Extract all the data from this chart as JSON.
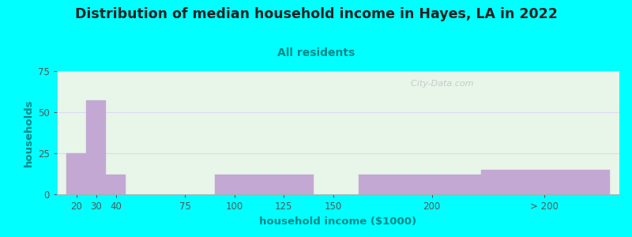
{
  "title": "Distribution of median household income in Hayes, LA in 2022",
  "subtitle": "All residents",
  "xlabel": "household income ($1000)",
  "ylabel": "households",
  "background_color": "#00FFFF",
  "plot_bg_left": "#e8f5e9",
  "plot_bg_right": "#f8f5ff",
  "bar_color": "#c4a8d4",
  "bar_edgecolor": "#c4a8d4",
  "title_fontsize": 12.5,
  "subtitle_fontsize": 10,
  "subtitle_color": "#008888",
  "tick_color": "#555555",
  "ylabel_color": "#008888",
  "xlabel_color": "#008888",
  "ylim": [
    0,
    75
  ],
  "yticks": [
    0,
    25,
    50,
    75
  ],
  "bar_lefts": [
    15,
    25,
    35,
    90,
    115,
    163,
    225
  ],
  "bar_rights": [
    25,
    35,
    45,
    115,
    140,
    225,
    290
  ],
  "bar_heights": [
    25,
    57,
    12,
    12,
    12,
    12,
    15
  ],
  "xtick_labels": [
    "20",
    "30",
    "40",
    "75",
    "100",
    "125",
    "150",
    "200",
    "> 200"
  ],
  "xtick_positions": [
    20,
    30,
    40,
    75,
    100,
    125,
    150,
    200,
    257
  ],
  "xlim": [
    10,
    295
  ],
  "watermark": "  City-Data.com",
  "grid_color": "#e0d8ee",
  "spine_color": "#aaaaaa"
}
